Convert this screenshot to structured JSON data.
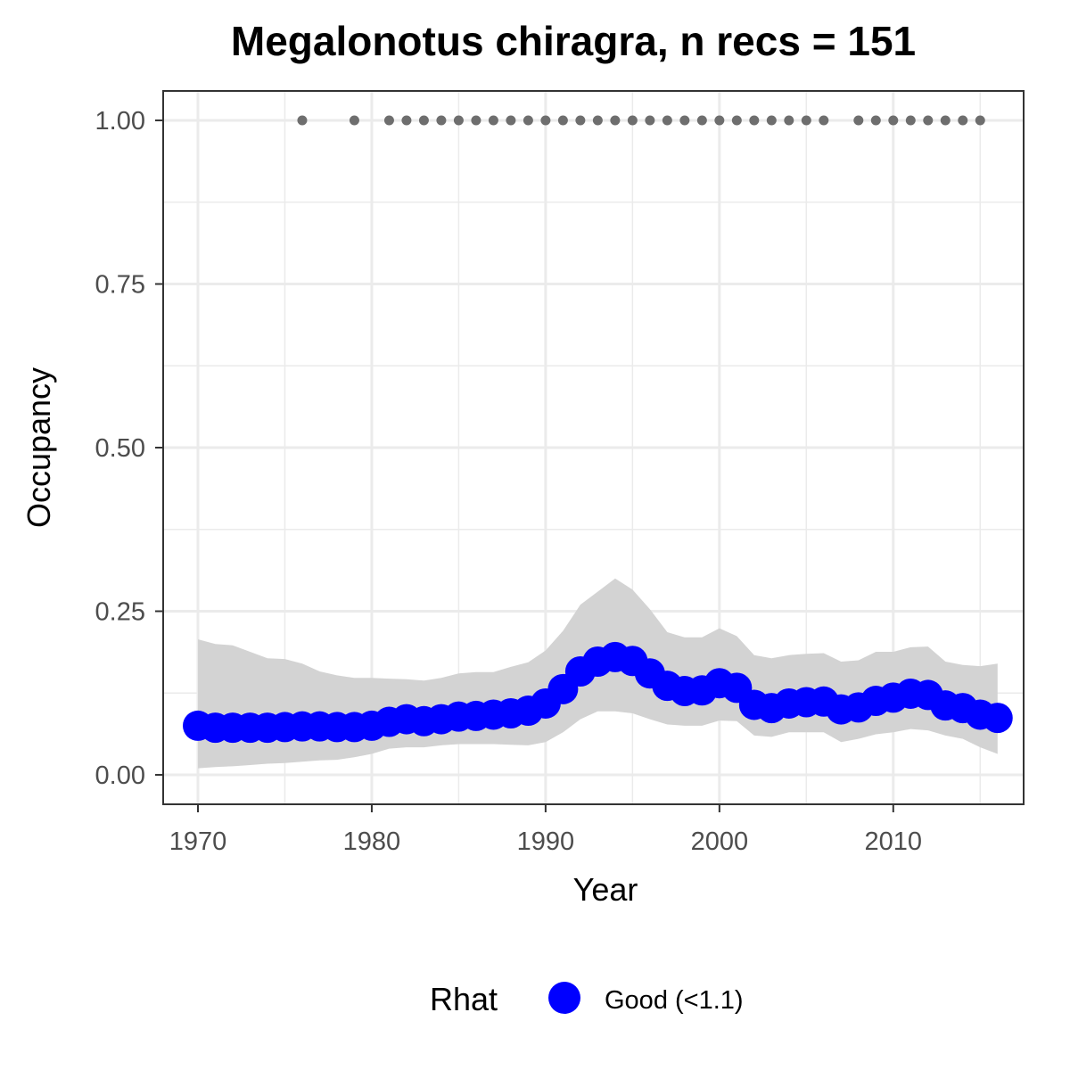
{
  "chart_data": {
    "type": "line",
    "title": "Megalonotus chiragra, n recs = 151",
    "xlabel": "Year",
    "ylabel": "Occupancy",
    "xlim": [
      1968,
      2017.5
    ],
    "ylim": [
      -0.045,
      1.045
    ],
    "x_ticks": [
      1970,
      1980,
      1990,
      2000,
      2010
    ],
    "x_tick_labels": [
      "1970",
      "1980",
      "1990",
      "2000",
      "2010"
    ],
    "y_ticks": [
      0,
      0.25,
      0.5,
      0.75,
      1
    ],
    "y_tick_labels": [
      "0.00",
      "0.25",
      "0.50",
      "0.75",
      "1.00"
    ],
    "grid": true,
    "legend_position": "bottom",
    "colors": {
      "occupancy": "#0000ff",
      "ribbon": "#d3d3d3",
      "records": "#6e6e6e",
      "grid": "#ebebeb",
      "panel_border": "#333333"
    },
    "series": [
      {
        "name": "Good (<1.1)",
        "x": [
          1970,
          1971,
          1972,
          1973,
          1974,
          1975,
          1976,
          1977,
          1978,
          1979,
          1980,
          1981,
          1982,
          1983,
          1984,
          1985,
          1986,
          1987,
          1988,
          1989,
          1990,
          1991,
          1992,
          1993,
          1994,
          1995,
          1996,
          1997,
          1998,
          1999,
          2000,
          2001,
          2002,
          2003,
          2004,
          2005,
          2006,
          2007,
          2008,
          2009,
          2010,
          2011,
          2012,
          2013,
          2014,
          2015,
          2016
        ],
        "values": [
          0.075,
          0.072,
          0.072,
          0.072,
          0.072,
          0.073,
          0.074,
          0.074,
          0.073,
          0.073,
          0.075,
          0.081,
          0.085,
          0.082,
          0.085,
          0.089,
          0.09,
          0.092,
          0.094,
          0.098,
          0.109,
          0.131,
          0.158,
          0.173,
          0.18,
          0.174,
          0.155,
          0.136,
          0.128,
          0.129,
          0.14,
          0.133,
          0.107,
          0.102,
          0.109,
          0.111,
          0.112,
          0.1,
          0.103,
          0.113,
          0.118,
          0.124,
          0.122,
          0.106,
          0.102,
          0.092,
          0.087
        ],
        "lower": [
          0.01,
          0.012,
          0.013,
          0.015,
          0.017,
          0.018,
          0.02,
          0.022,
          0.023,
          0.027,
          0.032,
          0.04,
          0.042,
          0.042,
          0.045,
          0.047,
          0.047,
          0.047,
          0.046,
          0.045,
          0.05,
          0.065,
          0.085,
          0.097,
          0.097,
          0.094,
          0.085,
          0.077,
          0.075,
          0.075,
          0.083,
          0.082,
          0.06,
          0.058,
          0.065,
          0.065,
          0.065,
          0.05,
          0.055,
          0.062,
          0.065,
          0.07,
          0.068,
          0.06,
          0.055,
          0.042,
          0.032
        ],
        "upper": [
          0.207,
          0.2,
          0.198,
          0.188,
          0.178,
          0.177,
          0.17,
          0.158,
          0.152,
          0.148,
          0.148,
          0.147,
          0.146,
          0.144,
          0.148,
          0.155,
          0.157,
          0.157,
          0.165,
          0.172,
          0.19,
          0.22,
          0.26,
          0.28,
          0.3,
          0.283,
          0.253,
          0.218,
          0.21,
          0.21,
          0.224,
          0.212,
          0.183,
          0.178,
          0.183,
          0.185,
          0.186,
          0.173,
          0.175,
          0.188,
          0.188,
          0.195,
          0.196,
          0.173,
          0.168,
          0.166,
          0.17
        ]
      }
    ],
    "records": {
      "x": [
        1976,
        1979,
        1981,
        1982,
        1983,
        1984,
        1985,
        1986,
        1987,
        1988,
        1989,
        1990,
        1991,
        1992,
        1993,
        1994,
        1995,
        1996,
        1997,
        1998,
        1999,
        2000,
        2001,
        2002,
        2003,
        2004,
        2005,
        2006,
        2008,
        2009,
        2010,
        2011,
        2012,
        2013,
        2014,
        2015
      ],
      "y": 1.0
    },
    "legend": {
      "title": "Rhat",
      "label": "Good (<1.1)"
    }
  }
}
